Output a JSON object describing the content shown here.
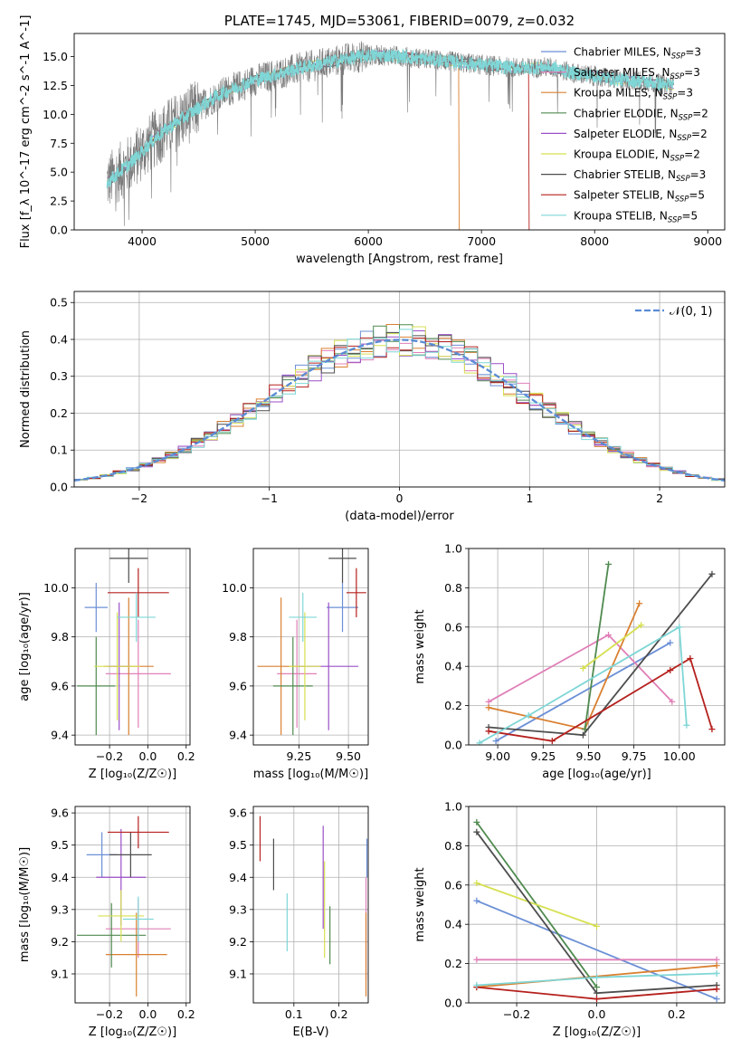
{
  "figure": {
    "title": "PLATE=1745, MJD=53061, FIBERID=0079, z=0.032"
  },
  "colors": {
    "chabrier_miles": "#6b8fd6",
    "salpeter_miles": "#e07fb7",
    "kroupa_miles": "#d98030",
    "chabrier_elodie": "#4f8a4f",
    "salpeter_elodie": "#9b4fc7",
    "kroupa_elodie": "#d6e050",
    "chabrier_stelib": "#4d4d4d",
    "salpeter_stelib": "#b5201d",
    "kroupa_stelib": "#7fd6d6",
    "gauss": "#5b8bd5",
    "grid": "#b0b0b0"
  },
  "chart_data": [
    {
      "id": "spectrum",
      "type": "line",
      "xlabel": "wavelength [Angstrom, rest frame]",
      "ylabel": "Flux [f_λ 10^-17 erg cm^-2 s^-1 A^-1]",
      "xlim": [
        3400,
        9150
      ],
      "ylim": [
        0,
        17
      ],
      "xticks": [
        4000,
        5000,
        6000,
        7000,
        8000,
        9000
      ],
      "yticks": [
        0.0,
        2.5,
        5.0,
        7.5,
        10.0,
        12.5,
        15.0
      ],
      "grid": false,
      "legend_position": "top-right",
      "legend": [
        {
          "label": "Chabrier MILES, N",
          "sub": "SSP",
          "suffix": "=3",
          "color_key": "chabrier_miles"
        },
        {
          "label": "Salpeter MILES, N",
          "sub": "SSP",
          "suffix": "=3",
          "color_key": "salpeter_miles"
        },
        {
          "label": "Kroupa MILES, N",
          "sub": "SSP",
          "suffix": "=3",
          "color_key": "kroupa_miles"
        },
        {
          "label": "Chabrier ELODIE, N",
          "sub": "SSP",
          "suffix": "=2",
          "color_key": "chabrier_elodie"
        },
        {
          "label": "Salpeter ELODIE, N",
          "sub": "SSP",
          "suffix": "=2",
          "color_key": "salpeter_elodie"
        },
        {
          "label": "Kroupa ELODIE, N",
          "sub": "SSP",
          "suffix": "=2",
          "color_key": "kroupa_elodie"
        },
        {
          "label": "Chabrier STELIB, N",
          "sub": "SSP",
          "suffix": "=3",
          "color_key": "chabrier_stelib"
        },
        {
          "label": "Salpeter STELIB, N",
          "sub": "SSP",
          "suffix": "=5",
          "color_key": "salpeter_stelib"
        },
        {
          "label": "Kroupa STELIB, N",
          "sub": "SSP",
          "suffix": "=5",
          "color_key": "kroupa_stelib"
        }
      ],
      "continuum": {
        "x": [
          3700,
          3800,
          3900,
          4000,
          4100,
          4200,
          4300,
          4400,
          4500,
          4600,
          4700,
          4800,
          4900,
          5000,
          5200,
          5400,
          5600,
          5800,
          6000,
          6200,
          6400,
          6600,
          6800,
          7000,
          7200,
          7400,
          7600,
          7800,
          8000,
          8200,
          8400,
          8600,
          8700
        ],
        "y": [
          4.2,
          5.0,
          5.8,
          6.8,
          7.8,
          8.6,
          9.3,
          9.9,
          10.6,
          11.2,
          11.8,
          12.2,
          12.6,
          13.0,
          13.5,
          14.0,
          14.4,
          14.8,
          15.1,
          15.1,
          14.9,
          14.7,
          14.5,
          14.3,
          14.1,
          14.0,
          14.1,
          13.6,
          13.3,
          13.0,
          12.9,
          12.6,
          12.5
        ]
      },
      "cutoffs": [
        {
          "series": "kroupa_miles",
          "x": 6800
        },
        {
          "series": "salpeter_stelib",
          "x": 7420
        }
      ]
    },
    {
      "id": "residuals",
      "type": "line",
      "xlabel": "(data-model)/error",
      "ylabel": "Normed distribution",
      "xlim": [
        -2.5,
        2.5
      ],
      "ylim": [
        0,
        0.53
      ],
      "xticks": [
        -2,
        -1,
        0,
        1,
        2
      ],
      "yticks": [
        0.0,
        0.1,
        0.2,
        0.3,
        0.4,
        0.5
      ],
      "grid": true,
      "legend_position": "top-right",
      "legend": [
        {
          "label": "𝒩(0, 1)",
          "color_key": "gauss",
          "dashed": true
        }
      ],
      "bin_width": 0.1,
      "series": [
        {
          "name": "Chabrier MILES",
          "color_key": "chabrier_miles"
        },
        {
          "name": "Salpeter MILES",
          "color_key": "salpeter_miles"
        },
        {
          "name": "Kroupa MILES",
          "color_key": "kroupa_miles"
        },
        {
          "name": "Chabrier ELODIE",
          "color_key": "chabrier_elodie"
        },
        {
          "name": "Salpeter ELODIE",
          "color_key": "salpeter_elodie"
        },
        {
          "name": "Kroupa ELODIE",
          "color_key": "kroupa_elodie"
        },
        {
          "name": "Chabrier STELIB",
          "color_key": "chabrier_stelib"
        },
        {
          "name": "Salpeter STELIB",
          "color_key": "salpeter_stelib"
        },
        {
          "name": "Kroupa STELIB",
          "color_key": "kroupa_stelib"
        }
      ]
    },
    {
      "id": "z_age",
      "type": "scatter",
      "xlabel": "Z [log₁₀(Z/Z☉)]",
      "ylabel": "age  [log₁₀(age/yr)]",
      "xlim": [
        -0.38,
        0.22
      ],
      "ylim": [
        9.36,
        10.16
      ],
      "xticks": [
        -0.2,
        0.0,
        0.2
      ],
      "yticks": [
        9.4,
        9.6,
        9.8,
        10.0
      ],
      "grid": true,
      "points": [
        {
          "color_key": "chabrier_miles",
          "x": -0.27,
          "y": 9.92,
          "xerr": 0.06,
          "yerr": 0.1
        },
        {
          "color_key": "salpeter_miles",
          "x": -0.05,
          "y": 9.65,
          "xerr": 0.17,
          "yerr": 0.22
        },
        {
          "color_key": "kroupa_miles",
          "x": -0.1,
          "y": 9.68,
          "xerr": 0.13,
          "yerr": 0.28
        },
        {
          "color_key": "chabrier_elodie",
          "x": -0.27,
          "y": 9.6,
          "xerr": 0.1,
          "yerr": 0.2
        },
        {
          "color_key": "salpeter_elodie",
          "x": -0.15,
          "y": 9.68,
          "xerr": 0.06,
          "yerr": 0.26
        },
        {
          "color_key": "kroupa_elodie",
          "x": -0.16,
          "y": 9.68,
          "xerr": 0.12,
          "yerr": 0.22
        },
        {
          "color_key": "chabrier_stelib",
          "x": -0.1,
          "y": 10.12,
          "xerr": 0.1,
          "yerr": 0.1
        },
        {
          "color_key": "salpeter_stelib",
          "x": -0.05,
          "y": 9.98,
          "xerr": 0.16,
          "yerr": 0.1
        },
        {
          "color_key": "kroupa_stelib",
          "x": -0.06,
          "y": 9.88,
          "xerr": 0.1,
          "yerr": 0.1
        }
      ]
    },
    {
      "id": "mass_age",
      "type": "scatter",
      "xlabel": "mass [log₁₀(M/M☉)]",
      "ylabel": "",
      "xlim": [
        9.02,
        9.6
      ],
      "ylim": [
        9.36,
        10.16
      ],
      "xticks": [
        9.25,
        9.5
      ],
      "yticks": [
        9.4,
        9.6,
        9.8,
        10.0
      ],
      "grid": true,
      "points": [
        {
          "color_key": "chabrier_miles",
          "x": 9.47,
          "y": 9.92,
          "xerr": 0.08,
          "yerr": 0.1
        },
        {
          "color_key": "salpeter_miles",
          "x": 9.24,
          "y": 9.65,
          "xerr": 0.1,
          "yerr": 0.22
        },
        {
          "color_key": "kroupa_miles",
          "x": 9.16,
          "y": 9.68,
          "xerr": 0.12,
          "yerr": 0.28
        },
        {
          "color_key": "chabrier_elodie",
          "x": 9.22,
          "y": 9.6,
          "xerr": 0.1,
          "yerr": 0.2
        },
        {
          "color_key": "salpeter_elodie",
          "x": 9.4,
          "y": 9.68,
          "xerr": 0.15,
          "yerr": 0.26
        },
        {
          "color_key": "kroupa_elodie",
          "x": 9.28,
          "y": 9.68,
          "xerr": 0.08,
          "yerr": 0.22
        },
        {
          "color_key": "chabrier_stelib",
          "x": 9.47,
          "y": 10.12,
          "xerr": 0.07,
          "yerr": 0.1
        },
        {
          "color_key": "salpeter_stelib",
          "x": 9.54,
          "y": 9.98,
          "xerr": 0.05,
          "yerr": 0.1
        },
        {
          "color_key": "kroupa_stelib",
          "x": 9.27,
          "y": 9.88,
          "xerr": 0.07,
          "yerr": 0.1
        }
      ]
    },
    {
      "id": "age_weight",
      "type": "line",
      "xlabel": "age  [log₁₀(age/yr)]",
      "ylabel": "mass weight",
      "xlim": [
        8.84,
        10.25
      ],
      "ylim": [
        0,
        1
      ],
      "xticks": [
        9.0,
        9.25,
        9.5,
        9.75,
        10.0
      ],
      "yticks": [
        0.0,
        0.2,
        0.4,
        0.6,
        0.8,
        1.0
      ],
      "grid": true,
      "series": [
        {
          "name": "Chabrier MILES",
          "color_key": "chabrier_miles",
          "x": [
            8.99,
            9.95
          ],
          "y": [
            0.02,
            0.52
          ]
        },
        {
          "name": "Salpeter MILES",
          "color_key": "salpeter_miles",
          "x": [
            8.95,
            9.61,
            9.96
          ],
          "y": [
            0.22,
            0.56,
            0.22
          ]
        },
        {
          "name": "Kroupa MILES",
          "color_key": "kroupa_miles",
          "x": [
            8.95,
            9.48,
            9.78
          ],
          "y": [
            0.19,
            0.08,
            0.72
          ]
        },
        {
          "name": "Chabrier ELODIE",
          "color_key": "chabrier_elodie",
          "x": [
            9.48,
            9.61
          ],
          "y": [
            0.08,
            0.92
          ]
        },
        {
          "name": "Salpeter ELODIE",
          "color_key": "salpeter_elodie",
          "x": [],
          "y": []
        },
        {
          "name": "Kroupa ELODIE",
          "color_key": "kroupa_elodie",
          "x": [
            9.47,
            9.79
          ],
          "y": [
            0.39,
            0.61
          ]
        },
        {
          "name": "Chabrier STELIB",
          "color_key": "chabrier_stelib",
          "x": [
            8.95,
            9.47,
            10.18
          ],
          "y": [
            0.09,
            0.05,
            0.87
          ]
        },
        {
          "name": "Salpeter STELIB",
          "color_key": "salpeter_stelib",
          "x": [
            8.95,
            9.3,
            9.95,
            10.06,
            10.18
          ],
          "y": [
            0.07,
            0.02,
            0.38,
            0.44,
            0.08
          ]
        },
        {
          "name": "Kroupa STELIB",
          "color_key": "kroupa_stelib",
          "x": [
            8.9,
            9.17,
            10.0,
            10.04
          ],
          "y": [
            0.01,
            0.15,
            0.6,
            0.1
          ]
        }
      ]
    },
    {
      "id": "z_mass",
      "type": "scatter",
      "xlabel": "Z [log₁₀(Z/Z☉)]",
      "ylabel": "mass [log₁₀(M/M☉)]",
      "xlim": [
        -0.38,
        0.22
      ],
      "ylim": [
        9.01,
        9.62
      ],
      "xticks": [
        -0.2,
        0.0,
        0.2
      ],
      "yticks": [
        9.1,
        9.2,
        9.3,
        9.4,
        9.5,
        9.6
      ],
      "grid": true,
      "points": [
        {
          "color_key": "chabrier_miles",
          "x": -0.24,
          "y": 9.47,
          "xerr": 0.08,
          "yerr": 0.07
        },
        {
          "color_key": "salpeter_miles",
          "x": -0.05,
          "y": 9.24,
          "xerr": 0.17,
          "yerr": 0.09
        },
        {
          "color_key": "kroupa_miles",
          "x": -0.06,
          "y": 9.16,
          "xerr": 0.16,
          "yerr": 0.13
        },
        {
          "color_key": "chabrier_elodie",
          "x": -0.19,
          "y": 9.22,
          "xerr": 0.18,
          "yerr": 0.1
        },
        {
          "color_key": "salpeter_elodie",
          "x": -0.14,
          "y": 9.4,
          "xerr": 0.13,
          "yerr": 0.15
        },
        {
          "color_key": "kroupa_elodie",
          "x": -0.14,
          "y": 9.28,
          "xerr": 0.12,
          "yerr": 0.08
        },
        {
          "color_key": "chabrier_stelib",
          "x": -0.09,
          "y": 9.47,
          "xerr": 0.11,
          "yerr": 0.07
        },
        {
          "color_key": "salpeter_stelib",
          "x": -0.05,
          "y": 9.54,
          "xerr": 0.16,
          "yerr": 0.05
        },
        {
          "color_key": "kroupa_stelib",
          "x": -0.05,
          "y": 9.27,
          "xerr": 0.08,
          "yerr": 0.07
        }
      ]
    },
    {
      "id": "ebv_mass",
      "type": "scatter",
      "xlabel": "E(B-V)",
      "ylabel": "",
      "xlim": [
        0.01,
        0.265
      ],
      "ylim": [
        9.01,
        9.62
      ],
      "xticks": [
        0.1,
        0.2
      ],
      "yticks": [
        9.1,
        9.2,
        9.3,
        9.4,
        9.5,
        9.6
      ],
      "grid": true,
      "points": [
        {
          "color_key": "chabrier_miles",
          "x": 0.262,
          "y": 9.46,
          "xerr": 0,
          "yerr": 0.06
        },
        {
          "color_key": "salpeter_miles",
          "x": 0.26,
          "y": 9.24,
          "xerr": 0,
          "yerr": 0.16
        },
        {
          "color_key": "kroupa_miles",
          "x": 0.26,
          "y": 9.16,
          "xerr": 0,
          "yerr": 0.13
        },
        {
          "color_key": "chabrier_elodie",
          "x": 0.18,
          "y": 9.22,
          "xerr": 0,
          "yerr": 0.09
        },
        {
          "color_key": "salpeter_elodie",
          "x": 0.165,
          "y": 9.4,
          "xerr": 0,
          "yerr": 0.16
        },
        {
          "color_key": "kroupa_elodie",
          "x": 0.168,
          "y": 9.3,
          "xerr": 0,
          "yerr": 0.15
        },
        {
          "color_key": "chabrier_stelib",
          "x": 0.055,
          "y": 9.44,
          "xerr": 0,
          "yerr": 0.08
        },
        {
          "color_key": "salpeter_stelib",
          "x": 0.025,
          "y": 9.52,
          "xerr": 0,
          "yerr": 0.07
        },
        {
          "color_key": "kroupa_stelib",
          "x": 0.085,
          "y": 9.26,
          "xerr": 0,
          "yerr": 0.09
        }
      ]
    },
    {
      "id": "z_weight",
      "type": "line",
      "xlabel": "Z [log₁₀(Z/Z☉)]",
      "ylabel": "mass weight",
      "xlim": [
        -0.32,
        0.32
      ],
      "ylim": [
        0,
        1
      ],
      "xticks": [
        -0.2,
        0.0,
        0.2
      ],
      "yticks": [
        0.0,
        0.2,
        0.4,
        0.6,
        0.8,
        1.0
      ],
      "grid": true,
      "series": [
        {
          "name": "Chabrier MILES",
          "color_key": "chabrier_miles",
          "x": [
            -0.3,
            0.3
          ],
          "y": [
            0.52,
            0.02
          ]
        },
        {
          "name": "Salpeter MILES",
          "color_key": "salpeter_miles",
          "x": [
            -0.3,
            0.3
          ],
          "y": [
            0.22,
            0.22
          ]
        },
        {
          "name": "Kroupa MILES",
          "color_key": "kroupa_miles",
          "x": [
            -0.3,
            0.3
          ],
          "y": [
            0.08,
            0.19
          ]
        },
        {
          "name": "Chabrier ELODIE",
          "color_key": "chabrier_elodie",
          "x": [
            -0.3,
            0.0
          ],
          "y": [
            0.92,
            0.08
          ]
        },
        {
          "name": "Salpeter ELODIE",
          "color_key": "salpeter_elodie",
          "x": [],
          "y": []
        },
        {
          "name": "Kroupa ELODIE",
          "color_key": "kroupa_elodie",
          "x": [
            -0.3,
            0.0
          ],
          "y": [
            0.61,
            0.39
          ]
        },
        {
          "name": "Chabrier STELIB",
          "color_key": "chabrier_stelib",
          "x": [
            -0.3,
            0.0,
            0.3
          ],
          "y": [
            0.87,
            0.05,
            0.09
          ]
        },
        {
          "name": "Salpeter STELIB",
          "color_key": "salpeter_stelib",
          "x": [
            -0.3,
            0.0,
            0.3
          ],
          "y": [
            0.08,
            0.02,
            0.07
          ]
        },
        {
          "name": "Kroupa STELIB",
          "color_key": "kroupa_stelib",
          "x": [
            -0.3,
            0.0,
            0.3
          ],
          "y": [
            0.09,
            0.13,
            0.15
          ]
        }
      ]
    }
  ]
}
